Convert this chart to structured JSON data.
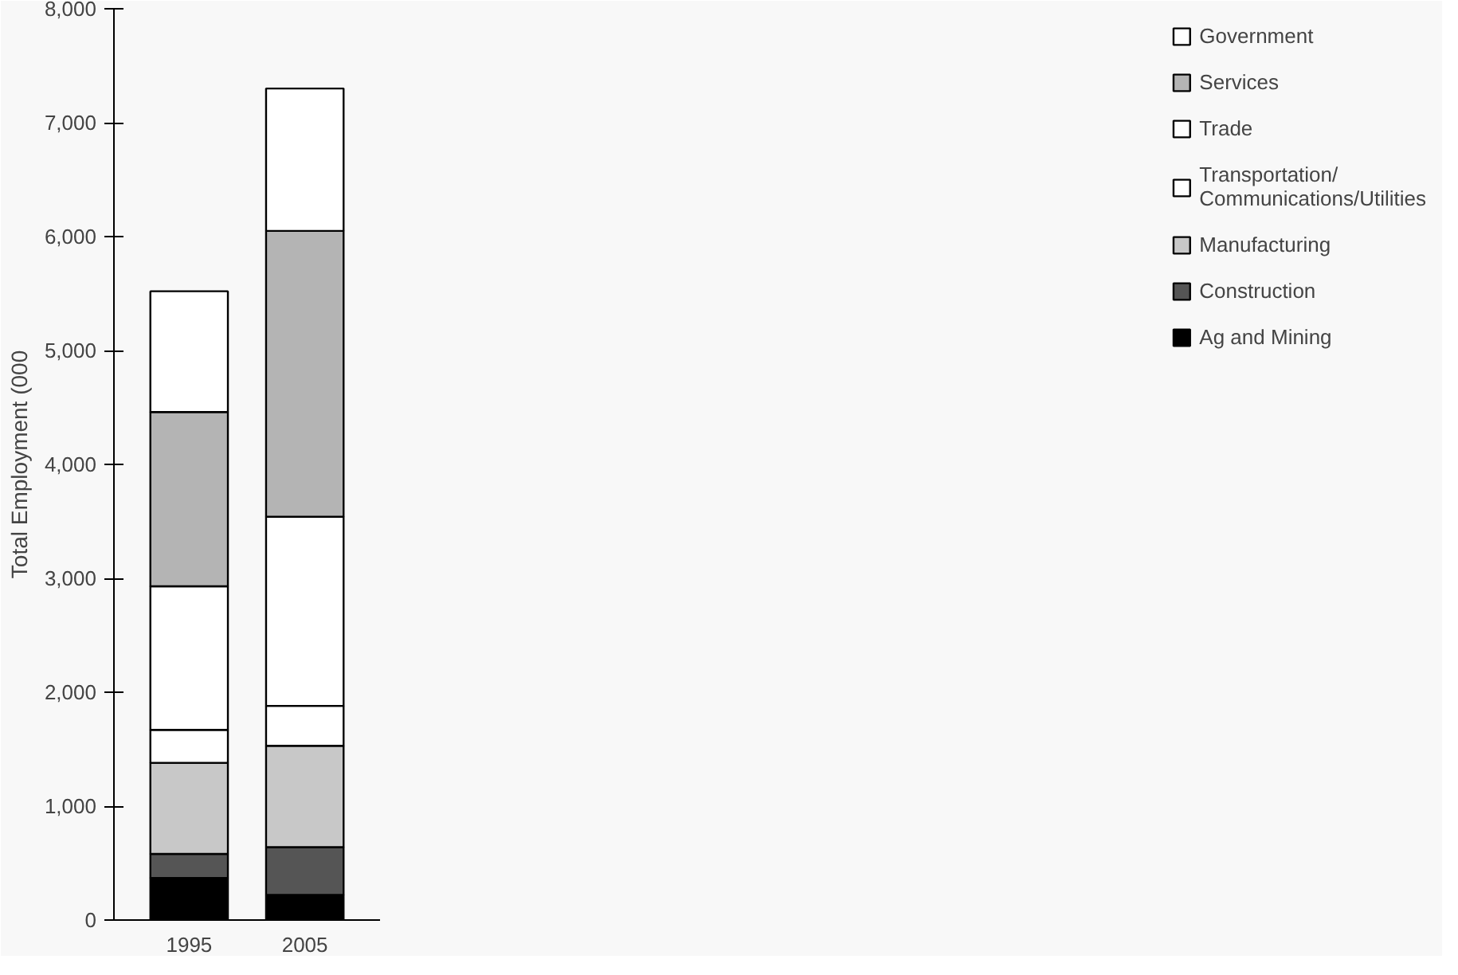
{
  "chart_data": {
    "type": "bar",
    "stacked": true,
    "ylabel": "Total Employment (000",
    "categories": [
      "1995",
      "2005"
    ],
    "series": [
      {
        "name": "Ag and Mining",
        "color": "#000000",
        "values": [
          370,
          220
        ]
      },
      {
        "name": "Construction",
        "color": "#555555",
        "values": [
          210,
          420
        ]
      },
      {
        "name": "Manufacturing",
        "color": "#c8c8c8",
        "values": [
          800,
          890
        ]
      },
      {
        "name": "Transportation/Communications/Utilities",
        "color": "#ffffff",
        "values": [
          290,
          350
        ]
      },
      {
        "name": "Trade",
        "color": "#ffffff",
        "values": [
          1260,
          1660
        ]
      },
      {
        "name": "Services",
        "color": "#b4b4b4",
        "values": [
          1530,
          2510
        ]
      },
      {
        "name": "Government",
        "color": "#ffffff",
        "values": [
          1060,
          1250
        ]
      }
    ],
    "ylim": [
      0,
      8000
    ],
    "yticks": [
      0,
      {
        "value": 1000,
        "label": "1,000"
      },
      {
        "value": 2000,
        "label": "2,000"
      },
      {
        "value": 3000,
        "label": "3,000"
      },
      {
        "value": 4000,
        "label": "4,000"
      },
      {
        "value": 5000,
        "label": "5,000"
      },
      {
        "value": 6000,
        "label": "6,000"
      },
      {
        "value": 7000,
        "label": "7,000"
      },
      {
        "value": 8000,
        "label": "8,000"
      }
    ],
    "grid": false,
    "legend": "top right"
  }
}
